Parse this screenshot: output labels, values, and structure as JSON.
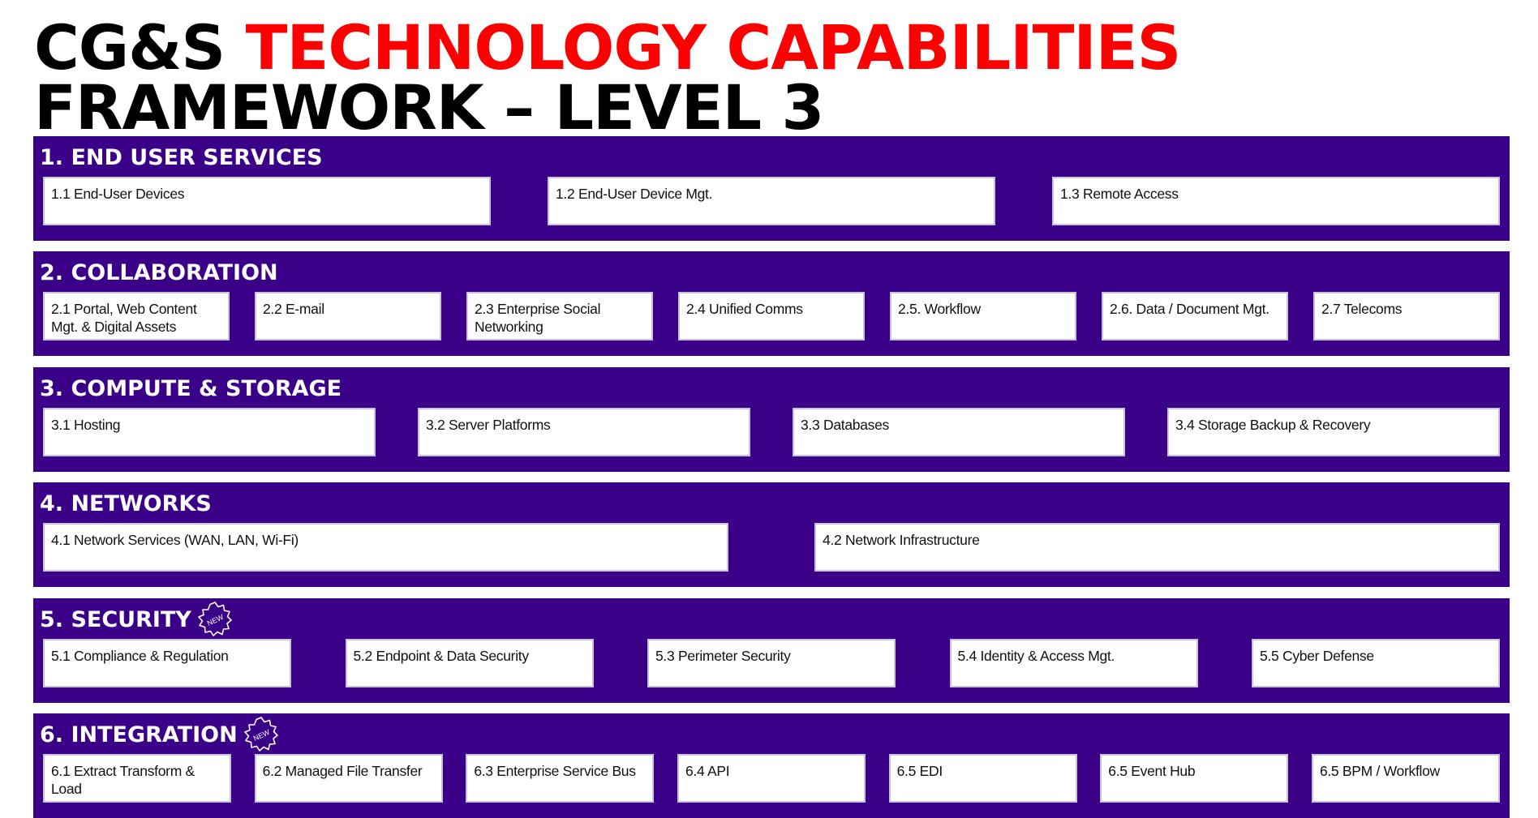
{
  "title": {
    "line1_prefix": "CG&S",
    "line1_accent": "TECHNOLOGY CAPABILITIES",
    "line2": "FRAMEWORK – LEVEL 3"
  },
  "colors": {
    "accent": "#ff0000",
    "band": "#3a0087",
    "card": "#ffffff"
  },
  "sections": [
    {
      "title": "1. END USER SERVICES",
      "badge": null,
      "items": [
        "1.1 End-User Devices",
        "1.2 End-User Device Mgt.",
        "1.3 Remote Access"
      ]
    },
    {
      "title": "2. COLLABORATION",
      "badge": null,
      "items": [
        "2.1 Portal, Web Content Mgt. & Digital Assets",
        "2.2 E-mail",
        "2.3 Enterprise Social Networking",
        "2.4 Unified Comms",
        "2.5. Workflow",
        "2.6. Data / Document Mgt.",
        "2.7 Telecoms"
      ]
    },
    {
      "title": "3. COMPUTE & STORAGE",
      "badge": null,
      "items": [
        "3.1 Hosting",
        "3.2 Server Platforms",
        "3.3 Databases",
        "3.4 Storage Backup & Recovery"
      ]
    },
    {
      "title": "4. NETWORKS",
      "badge": null,
      "items": [
        "4.1 Network Services (WAN, LAN, Wi-Fi)",
        "4.2 Network Infrastructure"
      ]
    },
    {
      "title": "5. SECURITY",
      "badge": "NEW",
      "items": [
        "5.1 Compliance & Regulation",
        "5.2 Endpoint & Data Security",
        "5.3 Perimeter Security",
        "5.4 Identity & Access Mgt.",
        "5.5 Cyber Defense"
      ]
    },
    {
      "title": "6. INTEGRATION",
      "badge": "NEW",
      "items": [
        "6.1 Extract Transform & Load",
        "6.2 Managed File Transfer",
        "6.3 Enterprise Service Bus",
        "6.4 API",
        "6.5 EDI",
        "6.5 Event Hub",
        "6.5 BPM / Workflow"
      ]
    }
  ]
}
